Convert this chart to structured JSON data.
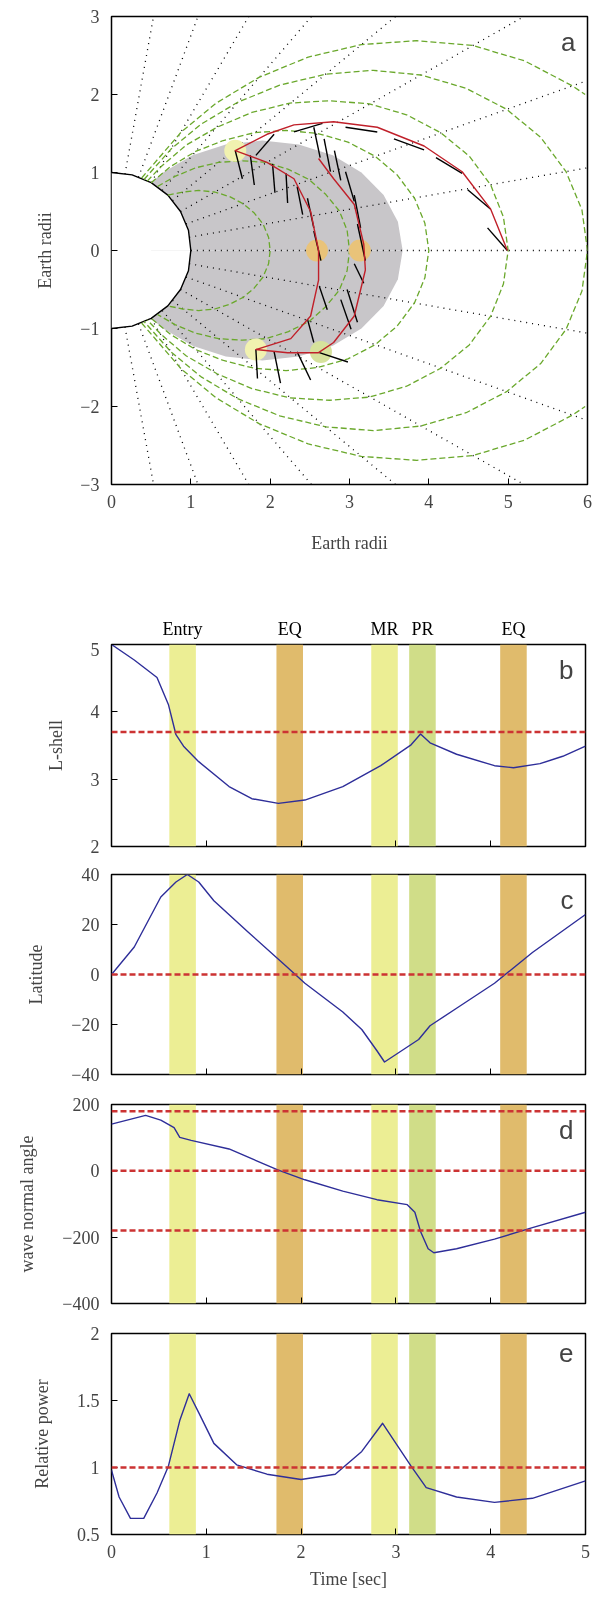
{
  "chart_data": [
    {
      "type": "line",
      "xlabel": "Earth radii",
      "ylabel": "Earth radii",
      "annotations": [
        "a"
      ],
      "xlim": [
        0,
        6
      ],
      "ylim": [
        -3,
        3
      ],
      "xticks": [
        0,
        1,
        2,
        3,
        4,
        5,
        6
      ],
      "yticks": [
        {
          "value": -3,
          "label": "−3"
        },
        {
          "value": -2,
          "label": "−2"
        },
        {
          "value": -1,
          "label": "−1"
        },
        0,
        1,
        2,
        3
      ],
      "series": [
        {
          "type": "area",
          "color": "#c8c6c9",
          "x": [
            0.5,
            0.65,
            1.02,
            1.44,
            1.9,
            2.36,
            2.79,
            3.15,
            3.43,
            3.61,
            3.67
          ],
          "values": [
            0.87,
            1.0,
            1.22,
            1.36,
            1.41,
            1.36,
            1.22,
            1.0,
            0.71,
            0.37,
            0
          ]
        },
        {
          "type": "area",
          "color": "#c8c6c9",
          "x": [
            0.5,
            0.65,
            1.02,
            1.44,
            1.9,
            2.36,
            2.79,
            3.15,
            3.43,
            3.61,
            3.67
          ],
          "values": [
            -0.87,
            -1.0,
            -1.22,
            -1.36,
            -1.41,
            -1.36,
            -1.22,
            -1.0,
            -0.71,
            -0.37,
            0
          ]
        },
        {
          "type": "area",
          "color": "#ffffff",
          "x": [
            0,
            0.26,
            0.5,
            0.71,
            0.87,
            0.97,
            1
          ],
          "values": [
            1,
            0.97,
            0.87,
            0.71,
            0.5,
            0.26,
            0
          ]
        },
        {
          "type": "area",
          "color": "#ffffff",
          "x": [
            0,
            0.26,
            0.5,
            0.71,
            0.87,
            0.97,
            1
          ],
          "values": [
            -1,
            -0.97,
            -0.87,
            -0.71,
            -0.5,
            -0.26,
            0
          ]
        },
        {
          "type": "line",
          "color": "#000000",
          "x": [
            0,
            0.26,
            0.5,
            0.71,
            0.87,
            0.97,
            1,
            0.97,
            0.87,
            0.71,
            0.5,
            0.26,
            0
          ],
          "values": [
            1,
            0.97,
            0.87,
            0.71,
            0.5,
            0.26,
            0,
            -0.26,
            -0.5,
            -0.71,
            -0.87,
            -0.97,
            -1
          ]
        },
        {
          "type": "line",
          "color": "#000000",
          "line_style": "dotted",
          "x": [
            1,
            6
          ],
          "values": [
            0,
            0
          ]
        },
        {
          "type": "line",
          "color": "#000000",
          "line_style": "dotted",
          "x": [
            0.98,
            6
          ],
          "values": [
            0.17,
            1.06
          ]
        },
        {
          "type": "line",
          "color": "#000000",
          "line_style": "dotted",
          "x": [
            0.98,
            6
          ],
          "values": [
            -0.17,
            -1.06
          ]
        },
        {
          "type": "line",
          "color": "#000000",
          "line_style": "dotted",
          "x": [
            0.94,
            6
          ],
          "values": [
            0.34,
            2.18
          ]
        },
        {
          "type": "line",
          "color": "#000000",
          "line_style": "dotted",
          "x": [
            0.94,
            6
          ],
          "values": [
            -0.34,
            -2.18
          ]
        },
        {
          "type": "line",
          "color": "#000000",
          "line_style": "dotted",
          "x": [
            0.87,
            5.2
          ],
          "values": [
            0.5,
            3
          ]
        },
        {
          "type": "line",
          "color": "#000000",
          "line_style": "dotted",
          "x": [
            0.87,
            5.2
          ],
          "values": [
            -0.5,
            -3
          ]
        },
        {
          "type": "line",
          "color": "#000000",
          "line_style": "dotted",
          "x": [
            0.77,
            3.58
          ],
          "values": [
            0.64,
            3
          ]
        },
        {
          "type": "line",
          "color": "#000000",
          "line_style": "dotted",
          "x": [
            0.77,
            3.58
          ],
          "values": [
            -0.64,
            -3
          ]
        },
        {
          "type": "line",
          "color": "#000000",
          "line_style": "dotted",
          "x": [
            0.64,
            2.52
          ],
          "values": [
            0.77,
            3
          ]
        },
        {
          "type": "line",
          "color": "#000000",
          "line_style": "dotted",
          "x": [
            0.64,
            2.52
          ],
          "values": [
            -0.77,
            -3
          ]
        },
        {
          "type": "line",
          "color": "#000000",
          "line_style": "dotted",
          "x": [
            0.5,
            1.73
          ],
          "values": [
            0.87,
            3
          ]
        },
        {
          "type": "line",
          "color": "#000000",
          "line_style": "dotted",
          "x": [
            0.5,
            1.73
          ],
          "values": [
            -0.87,
            -3
          ]
        },
        {
          "type": "line",
          "color": "#000000",
          "line_style": "dotted",
          "x": [
            0.34,
            1.09
          ],
          "values": [
            0.94,
            3
          ]
        },
        {
          "type": "line",
          "color": "#000000",
          "line_style": "dotted",
          "x": [
            0.34,
            1.09
          ],
          "values": [
            -0.94,
            -3
          ]
        },
        {
          "type": "line",
          "color": "#000000",
          "line_style": "dotted",
          "x": [
            0.17,
            0.53
          ],
          "values": [
            0.98,
            3
          ]
        },
        {
          "type": "line",
          "color": "#000000",
          "line_style": "dotted",
          "x": [
            0.17,
            0.53
          ],
          "values": [
            -0.98,
            -3
          ]
        },
        {
          "type": "line",
          "color": "#6aa82c",
          "line_style": "dashed",
          "x": [
            0.71,
            0.9,
            1.1,
            1.3,
            1.49,
            1.66,
            1.8,
            1.91,
            1.98,
            2,
            1.98,
            1.91,
            1.8,
            1.66,
            1.49,
            1.3,
            1.1,
            0.9,
            0.71
          ],
          "values": [
            0.71,
            0.75,
            0.77,
            0.75,
            0.69,
            0.6,
            0.48,
            0.34,
            0.17,
            0,
            -0.17,
            -0.34,
            -0.48,
            -0.6,
            -0.69,
            -0.75,
            -0.77,
            -0.75,
            -0.71
          ]
        },
        {
          "type": "line",
          "color": "#6aa82c",
          "line_style": "dashed",
          "x": [
            0.58,
            0.8,
            1.06,
            1.35,
            1.65,
            1.95,
            2.23,
            2.49,
            2.7,
            2.87,
            2.97,
            3,
            2.97,
            2.87,
            2.7,
            2.49,
            2.23,
            1.95,
            1.65,
            1.35,
            1.06,
            0.8,
            0.58
          ],
          "values": [
            0.82,
            0.95,
            1.06,
            1.13,
            1.15,
            1.13,
            1.04,
            0.91,
            0.72,
            0.51,
            0.26,
            0,
            -0.26,
            -0.51,
            -0.72,
            -0.91,
            -1.04,
            -1.13,
            -1.15,
            -1.13,
            -1.06,
            -0.95,
            -0.82
          ]
        },
        {
          "type": "line",
          "color": "#6aa82c",
          "line_style": "dashed",
          "x": [
            0.5,
            0.75,
            1.06,
            1.41,
            1.8,
            2.2,
            2.6,
            2.98,
            3.32,
            3.6,
            3.82,
            3.95,
            4,
            3.95,
            3.82,
            3.6,
            3.32,
            2.98,
            2.6,
            2.2,
            1.8,
            1.41,
            1.06,
            0.75,
            0.5
          ],
          "values": [
            0.87,
            1.08,
            1.27,
            1.41,
            1.51,
            1.54,
            1.5,
            1.39,
            1.21,
            0.97,
            0.67,
            0.35,
            0,
            -0.35,
            -0.67,
            -0.97,
            -1.21,
            -1.39,
            -1.5,
            -1.54,
            -1.51,
            -1.41,
            -1.27,
            -1.08,
            -0.87
          ]
        },
        {
          "type": "line",
          "color": "#6aa82c",
          "line_style": "dashed",
          "x": [
            0.45,
            0.63,
            0.94,
            1.33,
            1.77,
            2.25,
            2.75,
            3.25,
            3.72,
            4.15,
            4.51,
            4.78,
            4.94,
            5,
            4.94,
            4.78,
            4.51,
            4.15,
            3.72,
            3.25,
            2.75,
            2.25,
            1.77,
            1.33,
            0.94,
            0.63,
            0.45
          ],
          "values": [
            0.89,
            1.08,
            1.35,
            1.58,
            1.77,
            1.89,
            1.92,
            1.88,
            1.74,
            1.51,
            1.21,
            0.84,
            0.43,
            0,
            -0.43,
            -0.84,
            -1.21,
            -1.51,
            -1.74,
            -1.88,
            -1.92,
            -1.89,
            -1.77,
            -1.58,
            -1.35,
            -1.08,
            -0.89
          ]
        },
        {
          "type": "line",
          "color": "#6aa82c",
          "line_style": "dashed",
          "x": [
            0.41,
            0.75,
            1.13,
            1.59,
            2.12,
            2.7,
            3.3,
            3.9,
            4.47,
            4.98,
            5.41,
            5.73,
            5.93,
            6,
            5.93,
            5.73,
            5.41,
            4.98,
            4.47,
            3.9,
            3.3,
            2.7,
            2.12,
            1.59,
            1.13,
            0.75,
            0.41
          ],
          "values": [
            0.91,
            1.3,
            1.62,
            1.9,
            2.12,
            2.26,
            2.31,
            2.25,
            2.08,
            1.81,
            1.45,
            1.01,
            0.52,
            0,
            -0.52,
            -1.01,
            -1.45,
            -1.81,
            -2.08,
            -2.25,
            -2.31,
            -2.26,
            -2.12,
            -1.9,
            -1.62,
            -1.3,
            -0.91
          ]
        },
        {
          "type": "line",
          "color": "#6aa82c",
          "line_style": "dashed",
          "x": [
            0.38,
            0.88,
            1.32,
            1.86,
            2.48,
            3.15,
            3.85,
            4.55,
            5.21,
            5.81,
            5.97
          ],
          "values": [
            0.93,
            1.52,
            1.89,
            2.22,
            2.48,
            2.64,
            2.69,
            2.63,
            2.43,
            2.11,
            2.0
          ]
        },
        {
          "type": "line",
          "color": "#6aa82c",
          "line_style": "dashed",
          "x": [
            0.38,
            0.88,
            1.32,
            1.86,
            2.48,
            3.15,
            3.85,
            4.55,
            5.21,
            5.81,
            5.97
          ],
          "values": [
            -0.93,
            -1.52,
            -1.89,
            -2.22,
            -2.48,
            -2.64,
            -2.69,
            -2.63,
            -2.43,
            -2.11,
            -2.0
          ]
        },
        {
          "type": "scatter",
          "marker": "circle",
          "color": "#f1f2b0",
          "x": [
            1.56,
            1.82
          ],
          "values": [
            1.28,
            -1.27
          ]
        },
        {
          "type": "scatter",
          "marker": "circle",
          "color": "#e9c379",
          "x": [
            2.59,
            3.13
          ],
          "values": [
            0,
            0
          ]
        },
        {
          "type": "scatter",
          "marker": "circle",
          "color": "#d6e29c",
          "x": [
            2.64
          ],
          "values": [
            -1.3
          ]
        },
        {
          "type": "line",
          "color": "#000000",
          "x": [
            1.56,
            1.65
          ],
          "values": [
            1.28,
            0.92
          ]
        },
        {
          "type": "line",
          "color": "#000000",
          "x": [
            1.75,
            1.8
          ],
          "values": [
            1.22,
            0.84
          ]
        },
        {
          "type": "line",
          "color": "#000000",
          "x": [
            2.03,
            2.06
          ],
          "values": [
            1.11,
            0.74
          ]
        },
        {
          "type": "line",
          "color": "#000000",
          "x": [
            2.2,
            2.22
          ],
          "values": [
            0.99,
            0.61
          ]
        },
        {
          "type": "line",
          "color": "#000000",
          "x": [
            2.34,
            2.41
          ],
          "values": [
            0.82,
            0.46
          ]
        },
        {
          "type": "line",
          "color": "#000000",
          "x": [
            2.47,
            2.55
          ],
          "values": [
            0.67,
            0.29
          ]
        },
        {
          "type": "line",
          "color": "#000000",
          "x": [
            2.55,
            2.64
          ],
          "values": [
            0.25,
            -0.13
          ]
        },
        {
          "type": "line",
          "color": "#000000",
          "x": [
            2.55,
            2.63
          ],
          "values": [
            1.58,
            1.19
          ]
        },
        {
          "type": "line",
          "color": "#000000",
          "x": [
            2.68,
            2.76
          ],
          "values": [
            1.43,
            1.01
          ]
        },
        {
          "type": "line",
          "color": "#000000",
          "x": [
            2.81,
            2.89
          ],
          "values": [
            1.28,
            0.9
          ]
        },
        {
          "type": "line",
          "color": "#000000",
          "x": [
            2.95,
            3.06
          ],
          "values": [
            1.01,
            0.63
          ]
        },
        {
          "type": "line",
          "color": "#000000",
          "x": [
            3.06,
            3.14
          ],
          "values": [
            0.71,
            0.29
          ]
        },
        {
          "type": "line",
          "color": "#000000",
          "x": [
            3.1,
            3.2
          ],
          "values": [
            0.34,
            -0.13
          ]
        },
        {
          "type": "line",
          "color": "#000000",
          "x": [
            3.06,
            3.18
          ],
          "values": [
            -0.17,
            -0.42
          ]
        },
        {
          "type": "line",
          "color": "#000000",
          "x": [
            2.62,
            2.72
          ],
          "values": [
            -0.46,
            -0.76
          ]
        },
        {
          "type": "line",
          "color": "#000000",
          "x": [
            2.47,
            2.55
          ],
          "values": [
            -0.88,
            -1.18
          ]
        },
        {
          "type": "line",
          "color": "#000000",
          "x": [
            2.89,
            3.02
          ],
          "values": [
            -0.63,
            -1.01
          ]
        },
        {
          "type": "line",
          "color": "#000000",
          "x": [
            2.97,
            3.1
          ],
          "values": [
            -0.5,
            -0.92
          ]
        },
        {
          "type": "line",
          "color": "#000000",
          "x": [
            1.82,
            1.84
          ],
          "values": [
            -1.27,
            -1.64
          ]
        },
        {
          "type": "line",
          "color": "#000000",
          "x": [
            2.05,
            2.13
          ],
          "values": [
            -1.3,
            -1.7
          ]
        },
        {
          "type": "line",
          "color": "#000000",
          "x": [
            2.34,
            2.51
          ],
          "values": [
            -1.3,
            -1.66
          ]
        },
        {
          "type": "line",
          "color": "#000000",
          "x": [
            2.62,
            2.98
          ],
          "values": [
            -1.31,
            -1.43
          ]
        },
        {
          "type": "line",
          "color": "#000000",
          "x": [
            1.82,
            2.05
          ],
          "values": [
            1.22,
            1.49
          ]
        },
        {
          "type": "line",
          "color": "#000000",
          "x": [
            2.3,
            2.66
          ],
          "values": [
            1.52,
            1.63
          ]
        },
        {
          "type": "line",
          "color": "#000000",
          "x": [
            2.95,
            3.35
          ],
          "values": [
            1.58,
            1.52
          ]
        },
        {
          "type": "line",
          "color": "#000000",
          "x": [
            3.56,
            3.94
          ],
          "values": [
            1.43,
            1.29
          ]
        },
        {
          "type": "line",
          "color": "#000000",
          "x": [
            4.09,
            4.42
          ],
          "values": [
            1.19,
            0.99
          ]
        },
        {
          "type": "line",
          "color": "#000000",
          "x": [
            4.49,
            4.78
          ],
          "values": [
            0.78,
            0.53
          ]
        },
        {
          "type": "line",
          "color": "#000000",
          "x": [
            4.74,
            4.99
          ],
          "values": [
            0.29,
            0
          ]
        },
        {
          "type": "line",
          "color": "#c0202a",
          "x": [
            4.99,
            4.78,
            4.42,
            3.94,
            3.35,
            2.8,
            2.3,
            1.96,
            1.56,
            1.96,
            2.3,
            2.51,
            2.61,
            2.61,
            2.51,
            2.26,
            1.82,
            2.22,
            2.61,
            2.8,
            3.06,
            3.2,
            3.18,
            3.06,
            2.8,
            2.61
          ],
          "values": [
            0,
            0.53,
            1.01,
            1.34,
            1.58,
            1.65,
            1.61,
            1.49,
            1.28,
            1.13,
            0.92,
            0.5,
            0,
            -0.38,
            -0.84,
            -1.13,
            -1.27,
            -1.31,
            -1.31,
            -1.18,
            -0.84,
            -0.25,
            0.08,
            0.59,
            0.92,
            1.18
          ]
        }
      ]
    },
    {
      "type": "line",
      "ylabel": "L-shell",
      "annotations": [
        "b"
      ],
      "xlim": [
        0,
        5
      ],
      "ylim": [
        2,
        5
      ],
      "xticks": [
        0,
        1,
        2,
        3,
        4,
        5
      ],
      "yticks": [
        2,
        3,
        4,
        5
      ],
      "tick_labels": "y",
      "x": [
        0,
        0.24,
        0.48,
        0.6,
        0.68,
        0.76,
        0.92,
        1.24,
        1.48,
        1.76,
        2.04,
        2.44,
        2.84,
        3.16,
        3.26,
        3.36,
        3.64,
        4.04,
        4.24,
        4.52,
        4.76,
        5.0
      ],
      "series": [
        {
          "color": "#2e2e99",
          "values": [
            5.0,
            4.77,
            4.51,
            4.11,
            3.66,
            3.49,
            3.26,
            2.89,
            2.71,
            2.64,
            2.69,
            2.89,
            3.2,
            3.51,
            3.67,
            3.54,
            3.37,
            3.2,
            3.17,
            3.23,
            3.34,
            3.49
          ]
        }
      ],
      "ref_lines": [
        {
          "axis": "y",
          "value": 3.7,
          "color": "#cc3333",
          "line_style": "dashed"
        }
      ],
      "bands": [
        {
          "axis": "x",
          "from": 0.61,
          "to": 0.89,
          "label": "Entry",
          "color": "#ecee94"
        },
        {
          "axis": "x",
          "from": 1.74,
          "to": 2.02,
          "label": "EQ",
          "color": "#e0bb6c"
        },
        {
          "axis": "x",
          "from": 2.74,
          "to": 3.02,
          "label": "MR",
          "color": "#ecee94"
        },
        {
          "axis": "x",
          "from": 3.14,
          "to": 3.42,
          "label": "PR",
          "color": "#d0dd88"
        },
        {
          "axis": "x",
          "from": 4.1,
          "to": 4.38,
          "label": "EQ",
          "color": "#e0bb6c"
        }
      ]
    },
    {
      "type": "line",
      "ylabel": "Latitude",
      "annotations": [
        "c"
      ],
      "xlim": [
        0,
        5
      ],
      "ylim": [
        -40,
        40
      ],
      "xticks": [
        0,
        1,
        2,
        3,
        4,
        5
      ],
      "yticks": [
        {
          "value": -40,
          "label": "−40"
        },
        {
          "value": -20,
          "label": "−20"
        },
        0,
        20,
        40
      ],
      "tick_labels": "y",
      "x": [
        0,
        0.24,
        0.52,
        0.68,
        0.8,
        0.92,
        1.08,
        1.44,
        1.84,
        2.04,
        2.44,
        2.64,
        2.8,
        2.88,
        3.0,
        3.16,
        3.24,
        3.36,
        3.64,
        4.04,
        4.44,
        5.0
      ],
      "series": [
        {
          "color": "#2e2e99",
          "values": [
            0,
            11,
            31,
            37,
            40,
            37,
            29.5,
            17,
            3.4,
            -3.5,
            -15,
            -22,
            -30.5,
            -35,
            -32,
            -28,
            -26,
            -20.5,
            -13.5,
            -3.5,
            8.8,
            24
          ]
        }
      ],
      "ref_lines": [
        {
          "axis": "y",
          "value": 0,
          "color": "#cc3333",
          "line_style": "dashed"
        }
      ],
      "bands": [
        {
          "axis": "x",
          "from": 0.61,
          "to": 0.89,
          "color": "#ecee94"
        },
        {
          "axis": "x",
          "from": 1.74,
          "to": 2.02,
          "color": "#e0bb6c"
        },
        {
          "axis": "x",
          "from": 2.74,
          "to": 3.02,
          "color": "#ecee94"
        },
        {
          "axis": "x",
          "from": 3.14,
          "to": 3.42,
          "color": "#d0dd88"
        },
        {
          "axis": "x",
          "from": 4.1,
          "to": 4.38,
          "color": "#e0bb6c"
        }
      ]
    },
    {
      "type": "line",
      "ylabel": "wave normal angle",
      "annotations": [
        "d"
      ],
      "xlim": [
        0,
        5
      ],
      "ylim": [
        -400,
        200
      ],
      "xticks": [
        0,
        1,
        2,
        3,
        4,
        5
      ],
      "yticks": [
        {
          "value": -400,
          "label": "−400"
        },
        {
          "value": -200,
          "label": "−200"
        },
        0,
        200
      ],
      "tick_labels": "y",
      "x": [
        0,
        0.36,
        0.52,
        0.66,
        0.72,
        0.84,
        1.24,
        1.76,
        2.04,
        2.44,
        2.8,
        3.12,
        3.2,
        3.26,
        3.34,
        3.4,
        3.64,
        4.04,
        4.44,
        5.0
      ],
      "series": [
        {
          "color": "#2e2e99",
          "values": [
            141,
            167,
            153,
            130,
            101,
            92,
            66,
            2,
            -27,
            -61,
            -87,
            -102,
            -125,
            -183,
            -235,
            -247,
            -235,
            -206,
            -171,
            -125
          ]
        }
      ],
      "ref_lines": [
        {
          "axis": "y",
          "value": 180,
          "color": "#cc3333",
          "line_style": "dashed"
        },
        {
          "axis": "y",
          "value": 0,
          "color": "#cc3333",
          "line_style": "dashed"
        },
        {
          "axis": "y",
          "value": -180,
          "color": "#cc3333",
          "line_style": "dashed"
        }
      ],
      "bands": [
        {
          "axis": "x",
          "from": 0.61,
          "to": 0.89,
          "color": "#ecee94"
        },
        {
          "axis": "x",
          "from": 1.74,
          "to": 2.02,
          "color": "#e0bb6c"
        },
        {
          "axis": "x",
          "from": 2.74,
          "to": 3.02,
          "color": "#ecee94"
        },
        {
          "axis": "x",
          "from": 3.14,
          "to": 3.42,
          "color": "#d0dd88"
        },
        {
          "axis": "x",
          "from": 4.1,
          "to": 4.38,
          "color": "#e0bb6c"
        }
      ]
    },
    {
      "type": "line",
      "xlabel": "Time [sec]",
      "ylabel": "Relative power",
      "annotations": [
        "e"
      ],
      "xlim": [
        0,
        5
      ],
      "ylim": [
        0.5,
        2
      ],
      "xticks": [
        0,
        1,
        2,
        3,
        4,
        5
      ],
      "yticks": [
        0.5,
        1,
        1.5,
        2
      ],
      "x": [
        0,
        0.08,
        0.2,
        0.34,
        0.48,
        0.6,
        0.72,
        0.82,
        0.92,
        1.08,
        1.32,
        1.64,
        2.0,
        2.36,
        2.64,
        2.86,
        3.0,
        3.16,
        3.32,
        3.64,
        4.04,
        4.44,
        5.0
      ],
      "series": [
        {
          "color": "#2e2e99",
          "values": [
            0.98,
            0.78,
            0.62,
            0.62,
            0.81,
            1.01,
            1.35,
            1.55,
            1.41,
            1.18,
            1.02,
            0.95,
            0.91,
            0.95,
            1.12,
            1.33,
            1.18,
            1.01,
            0.85,
            0.78,
            0.74,
            0.77,
            0.9
          ]
        }
      ],
      "ref_lines": [
        {
          "axis": "y",
          "value": 1,
          "color": "#cc3333",
          "line_style": "dashed"
        }
      ],
      "bands": [
        {
          "axis": "x",
          "from": 0.61,
          "to": 0.89,
          "color": "#ecee94"
        },
        {
          "axis": "x",
          "from": 1.74,
          "to": 2.02,
          "color": "#e0bb6c"
        },
        {
          "axis": "x",
          "from": 2.74,
          "to": 3.02,
          "color": "#ecee94"
        },
        {
          "axis": "x",
          "from": 3.14,
          "to": 3.42,
          "color": "#d0dd88"
        },
        {
          "axis": "x",
          "from": 4.1,
          "to": 4.38,
          "color": "#e0bb6c"
        }
      ]
    }
  ]
}
